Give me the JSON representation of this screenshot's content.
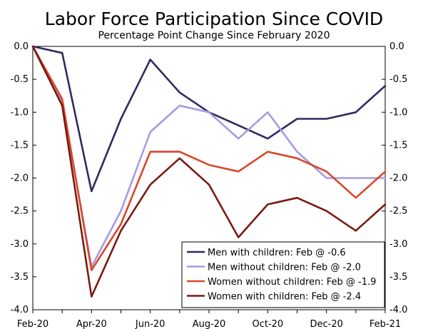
{
  "chart_data": {
    "type": "line",
    "title": "Labor Force Participation Since COVID",
    "subtitle": "Percentage Point Change Since February 2020",
    "xlabel": "",
    "ylabel": "",
    "ylim": [
      -4.0,
      0.0
    ],
    "x_tick_labels": [
      "Feb-20",
      "Apr-20",
      "Jun-20",
      "Aug-20",
      "Oct-20",
      "Dec-20",
      "Feb-21"
    ],
    "y_ticks_left": [
      "0.0",
      "-0.5",
      "-1.0",
      "-1.5",
      "-2.0",
      "-2.5",
      "-3.0",
      "-3.5",
      "-4.0"
    ],
    "y_ticks_right": [
      "0.0",
      "-0.5",
      "-1.0",
      "-1.5",
      "-2.0",
      "-2.5",
      "-3.0",
      "-3.5",
      "-4.0"
    ],
    "categories": [
      "Feb-20",
      "Mar-20",
      "Apr-20",
      "May-20",
      "Jun-20",
      "Jul-20",
      "Aug-20",
      "Sep-20",
      "Oct-20",
      "Nov-20",
      "Dec-20",
      "Jan-21",
      "Feb-21"
    ],
    "series": [
      {
        "name": "Men with children: Feb @ -0.6",
        "color": "#2e2a63",
        "values": [
          0.0,
          -0.1,
          -2.2,
          -1.1,
          -0.2,
          -0.7,
          -1.0,
          -1.2,
          -1.4,
          -1.1,
          -1.1,
          -1.0,
          -0.6
        ]
      },
      {
        "name": "Men without children: Feb @ -2.0",
        "color": "#a99ae0",
        "values": [
          0.0,
          -0.85,
          -3.35,
          -2.5,
          -1.3,
          -0.9,
          -1.0,
          -1.4,
          -1.0,
          -1.6,
          -2.0,
          -2.0,
          -2.0
        ]
      },
      {
        "name": "Women without children: Feb @ -1.9",
        "color": "#d9472b",
        "values": [
          0.0,
          -0.8,
          -3.4,
          -2.7,
          -1.6,
          -1.6,
          -1.8,
          -1.9,
          -1.6,
          -1.7,
          -1.9,
          -2.3,
          -1.9
        ]
      },
      {
        "name": "Women with children: Feb @ -2.4",
        "color": "#7a1a12",
        "values": [
          0.0,
          -0.9,
          -3.8,
          -2.8,
          -2.1,
          -1.7,
          -2.1,
          -2.9,
          -2.4,
          -2.3,
          -2.5,
          -2.8,
          -2.4
        ]
      }
    ],
    "legend_position": "bottom-right",
    "grid": false
  }
}
